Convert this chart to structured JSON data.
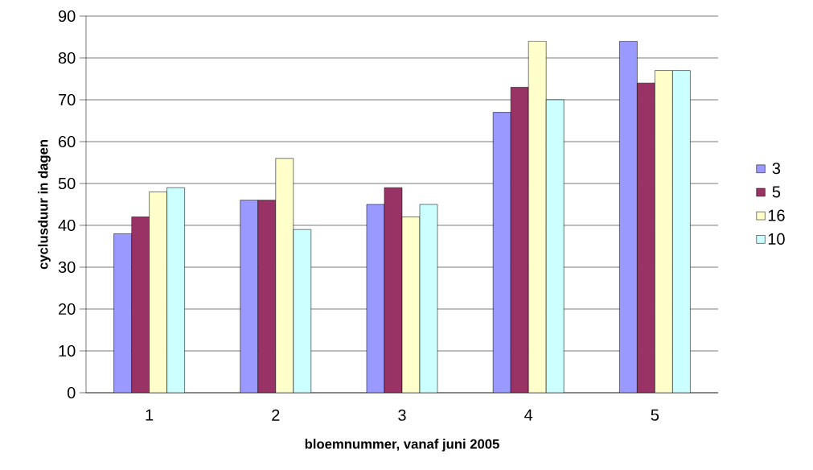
{
  "chart_data": {
    "type": "bar",
    "xlabel": "bloemnummer, vanaf juni 2005",
    "ylabel": "cyclusduur in dagen",
    "categories": [
      "1",
      "2",
      "3",
      "4",
      "5"
    ],
    "series": [
      {
        "name": "3",
        "color": "#9999ff",
        "values": [
          38,
          46,
          45,
          67,
          84
        ]
      },
      {
        "name": "5",
        "color": "#993366",
        "values": [
          42,
          46,
          49,
          73,
          74
        ]
      },
      {
        "name": "16",
        "color": "#ffffcc",
        "values": [
          48,
          56,
          42,
          84,
          77
        ]
      },
      {
        "name": "10",
        "color": "#ccffff",
        "values": [
          49,
          39,
          45,
          70,
          77
        ]
      }
    ],
    "ylim": [
      0,
      90
    ],
    "yticks": [
      0,
      10,
      20,
      30,
      40,
      50,
      60,
      70,
      80,
      90
    ],
    "grid": "y",
    "legend": "right"
  }
}
